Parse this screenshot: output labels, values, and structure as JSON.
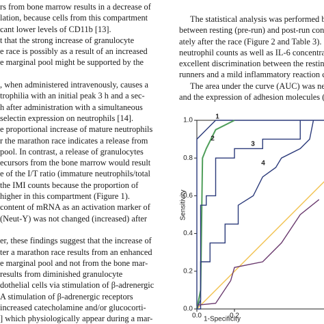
{
  "text_left": [
    [
      "rs from bone marrow results in a decrease of",
      "lation, because cells from this compartment",
      "cant lower levels of CD11b [13].",
      "t that the strong increase of granulocyte",
      "e race is possibly as a result of an increased",
      "e marginal pool might be supported by the"
    ],
    [
      ", when administered intravenously, causes a",
      "trophilia with an initial peak 3 h and a sec-",
      "h after administration with a simultaneous",
      "selectin expression on neutrophils [14].",
      "e proportional increase of mature neutrophils",
      "r the marathon race indicates a release from",
      "pool. In contrast, a release of granulocytes",
      "ecursors from the bone marrow would result",
      "e of the I/T ratio (immature neutrophils/total",
      "the IMI counts because the proportion of",
      "higher in this compartment (Figure 1).",
      "content of mRNA as an activation marker of",
      "(Neut-Y) was not changed (increased) after"
    ],
    [
      "er, these findings suggest that the increase of",
      "ter a marathon race results from an enhanced",
      "e marginal pool and not from the bone mar-",
      "results from diminished granulocyte",
      "dothelial cells via stimulation of β-adrenergic",
      "A   stimulation of β-adrenergic receptors",
      "increased catecholamine and/or glucocorti-",
      "] which physiologically appear during a mar-"
    ]
  ],
  "text_right": [
    "The statistical analysis was performed by",
    "between resting (pre-run) and post-run cond",
    "ately after the race (Figure 2 and Table 3).",
    "neutrophil counts as well as IL-6 concentrat",
    "excellent discrimination between the resting g",
    "runners and a mild inflammatory reaction cau",
    "The area under the curve (AUC) was near",
    "and the expression of adhesion molecules (Cl"
  ],
  "chart_data": {
    "type": "line",
    "xlabel": "1-Specificity",
    "ylabel": "Sensitivity",
    "xlim": [
      0,
      1
    ],
    "ylim": [
      0,
      1
    ],
    "xticks": [
      {
        "value": 0,
        "label": "0.0"
      },
      {
        "value": 0.2,
        "label": "0.2"
      }
    ],
    "yticks": [
      {
        "value": 0,
        "label": "0.0"
      },
      {
        "value": 0.2,
        "label": "0.2"
      },
      {
        "value": 0.4,
        "label": "0.4"
      },
      {
        "value": 0.6,
        "label": "0.6"
      },
      {
        "value": 0.8,
        "label": "0.8"
      },
      {
        "value": 1,
        "label": "1.0"
      }
    ],
    "series": [
      {
        "name": "1",
        "color": "#2b3a7a",
        "x": [
          0,
          0,
          0.05,
          0.1,
          1
        ],
        "values": [
          0,
          0.9,
          0.95,
          1,
          1
        ]
      },
      {
        "name": "2",
        "color": "#4f9e5a",
        "x": [
          0,
          0.02,
          0.03,
          0.05,
          0.1,
          0.2
        ],
        "values": [
          0,
          0.1,
          0.8,
          0.85,
          0.95,
          1
        ]
      },
      {
        "name": "3",
        "color": "#2b3a7a",
        "x": [
          0,
          0.02,
          0.02,
          0.05,
          0.05,
          0.1,
          0.1,
          0.2,
          0.2,
          0.35,
          0.35,
          0.55,
          0.55
        ],
        "values": [
          0,
          0.05,
          0.55,
          0.55,
          0.6,
          0.6,
          0.8,
          0.8,
          0.85,
          0.85,
          0.9,
          0.9,
          1
        ]
      },
      {
        "name": "4",
        "color": "#2b3a7a",
        "x": [
          0,
          0.02,
          0.02,
          0.07,
          0.07,
          0.15,
          0.15,
          0.22,
          0.22,
          0.3,
          0.35,
          0.42,
          0.45,
          0.55,
          0.6,
          0.62
        ],
        "values": [
          0,
          0,
          0.25,
          0.25,
          0.35,
          0.35,
          0.45,
          0.45,
          0.55,
          0.6,
          0.7,
          0.75,
          0.8,
          0.85,
          0.9,
          1
        ]
      },
      {
        "color": "#6a3a6e",
        "x": [
          0,
          0.1,
          0.18,
          0.2,
          0.35,
          0.45,
          0.55,
          0.65
        ],
        "values": [
          0.02,
          0.03,
          0.15,
          0.22,
          0.25,
          0.35,
          0.5,
          0.58
        ]
      }
    ]
  }
}
